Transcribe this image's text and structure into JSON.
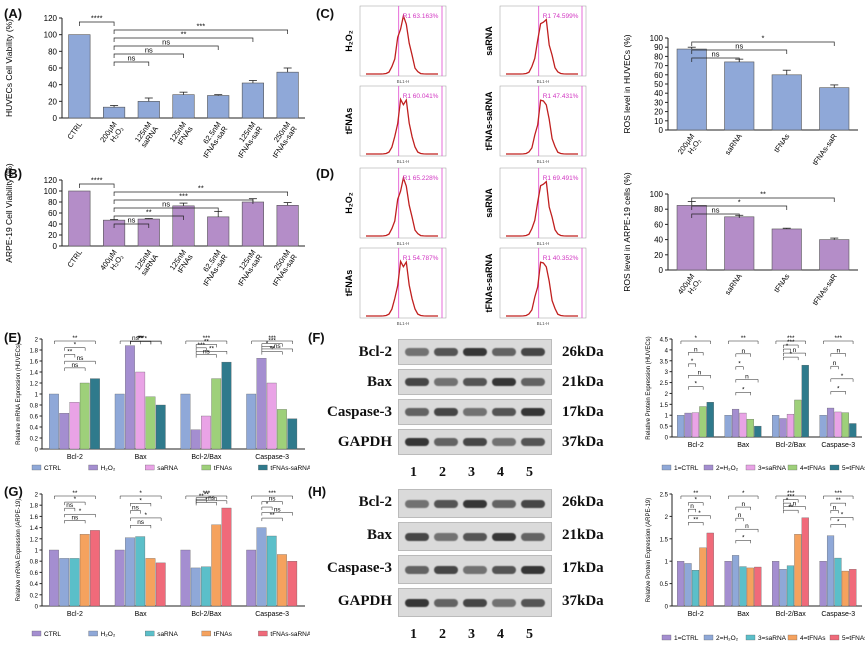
{
  "panels": {
    "A": "(A)",
    "B": "(B)",
    "C": "(C)",
    "D": "(D)",
    "E": "(E)",
    "F": "(F)",
    "G": "(G)",
    "H": "(H)"
  },
  "chart_data": [
    {
      "id": "A",
      "type": "bar",
      "ylabel": "HUVECs Cell Viability (%)",
      "ylim": [
        0,
        120
      ],
      "yticks": [
        0,
        20,
        40,
        60,
        80,
        100,
        120
      ],
      "categories": [
        "CTRL",
        "200μM H₂O₂",
        "125nM saRNA",
        "125nM tFNAs",
        "62.5nM tFNAs-saR",
        "125nM tFNAs-saR",
        "250nM tFNAs-saR"
      ],
      "values": [
        100,
        13,
        20,
        28,
        27,
        42,
        55
      ],
      "errors": [
        0,
        2,
        4,
        3,
        1,
        3,
        5
      ],
      "color": "#8fa8d8",
      "significance": [
        {
          "from": 0,
          "to": 1,
          "label": "****"
        },
        {
          "from": 1,
          "to": 6,
          "label": "***"
        },
        {
          "from": 1,
          "to": 5,
          "label": "**"
        },
        {
          "from": 1,
          "to": 4,
          "label": "ns"
        },
        {
          "from": 1,
          "to": 3,
          "label": "ns"
        },
        {
          "from": 1,
          "to": 2,
          "label": "ns"
        }
      ]
    },
    {
      "id": "B",
      "type": "bar",
      "ylabel": "ARPE-19 Cell Viability (%)",
      "ylim": [
        0,
        120
      ],
      "yticks": [
        0,
        20,
        40,
        60,
        80,
        100,
        120
      ],
      "categories": [
        "CTRL",
        "400μM H₂O₂",
        "125nM saRNA",
        "125nM tFNAs",
        "62.5nM tFNAs-saR",
        "125nM tFNAs-saR",
        "250nM tFNAs-saR"
      ],
      "values": [
        100,
        47,
        49,
        73,
        53,
        80,
        74
      ],
      "errors": [
        0,
        1,
        1,
        5,
        10,
        6,
        5
      ],
      "color": "#b48dc8",
      "significance": [
        {
          "from": 0,
          "to": 1,
          "label": "****"
        },
        {
          "from": 1,
          "to": 6,
          "label": "**"
        },
        {
          "from": 1,
          "to": 5,
          "label": "***"
        },
        {
          "from": 1,
          "to": 4,
          "label": "ns"
        },
        {
          "from": 1,
          "to": 3,
          "label": "**"
        },
        {
          "from": 1,
          "to": 2,
          "label": "ns"
        }
      ]
    },
    {
      "id": "C-bar",
      "type": "bar",
      "ylabel": "ROS level in HUVECs (%)",
      "ylim": [
        0,
        100
      ],
      "yticks": [
        0,
        10,
        20,
        30,
        40,
        50,
        60,
        70,
        80,
        90,
        100
      ],
      "categories": [
        "200μM H₂O₂",
        "saRNA",
        "tFNAs",
        "tFNAs-saR"
      ],
      "values": [
        88,
        74,
        60,
        46
      ],
      "errors": [
        2,
        3,
        5,
        3
      ],
      "color": "#8fa8d8",
      "significance": [
        {
          "from": 0,
          "to": 3,
          "label": "*"
        },
        {
          "from": 0,
          "to": 2,
          "label": "ns"
        },
        {
          "from": 0,
          "to": 1,
          "label": "ns"
        }
      ]
    },
    {
      "id": "D-bar",
      "type": "bar",
      "ylabel": "ROS level in ARPE-19 cells  (%)",
      "ylim": [
        0,
        100
      ],
      "yticks": [
        0,
        20,
        40,
        60,
        80,
        100
      ],
      "categories": [
        "400μM H₂O₂",
        "saRNA",
        "tFNAs",
        "tFNAs-saR"
      ],
      "values": [
        85,
        70,
        54,
        40
      ],
      "errors": [
        5,
        2,
        1,
        2
      ],
      "color": "#b48dc8",
      "significance": [
        {
          "from": 0,
          "to": 3,
          "label": "**"
        },
        {
          "from": 0,
          "to": 2,
          "label": "*"
        },
        {
          "from": 0,
          "to": 1,
          "label": "ns"
        }
      ]
    },
    {
      "id": "E",
      "type": "bar",
      "ylabel": "Relative mRNA Expression (HUVECs)",
      "ylim": [
        0,
        2.0
      ],
      "yticks": [
        0,
        0.2,
        0.4,
        0.6,
        0.8,
        1.0,
        1.2,
        1.4,
        1.6,
        1.8,
        2.0
      ],
      "categories": [
        "Bcl-2",
        "Bax",
        "Bcl-2/Bax",
        "Caspase-3"
      ],
      "series": [
        {
          "name": "CTRL",
          "color": "#8fa8d8",
          "values": [
            1.0,
            1.0,
            1.0,
            1.0
          ]
        },
        {
          "name": "H₂O₂",
          "color": "#a48ed0",
          "values": [
            0.65,
            1.88,
            0.35,
            1.65
          ]
        },
        {
          "name": "saRNA",
          "color": "#e9a3e6",
          "values": [
            0.85,
            1.4,
            0.6,
            1.2
          ]
        },
        {
          "name": "tFNAs",
          "color": "#9ed07a",
          "values": [
            1.2,
            0.95,
            1.28,
            0.72
          ]
        },
        {
          "name": "tFNAs-saRNA",
          "color": "#2f7a8c",
          "values": [
            1.28,
            0.8,
            1.58,
            0.55
          ]
        }
      ],
      "sig_labels": [
        [
          "**",
          "*",
          "**",
          "ns",
          "ns"
        ],
        [
          "***",
          "**",
          "ns",
          "*",
          "**"
        ],
        [
          "***",
          "**",
          "***",
          "**",
          "ns"
        ],
        [
          "***",
          "***",
          "*",
          "ns",
          "**"
        ]
      ]
    },
    {
      "id": "F-bar",
      "type": "bar",
      "ylabel": "Relative Protein Expression (HUVECs)",
      "ylim": [
        0,
        4.5
      ],
      "yticks": [
        0,
        0.5,
        1.0,
        1.5,
        2.0,
        2.5,
        3.0,
        3.5,
        4.0,
        4.5
      ],
      "categories": [
        "Bcl-2",
        "Bax",
        "Bcl-2/Bax",
        "Caspase-3"
      ],
      "series": [
        {
          "name": "1=CTRL",
          "color": "#8fa8d8",
          "values": [
            1.0,
            1.0,
            1.0,
            1.0
          ]
        },
        {
          "name": "2=H₂O₂",
          "color": "#a48ed0",
          "values": [
            1.1,
            1.28,
            0.85,
            1.33
          ]
        },
        {
          "name": "3=saRNA",
          "color": "#e9a3e6",
          "values": [
            1.12,
            1.1,
            1.05,
            1.15
          ]
        },
        {
          "name": "4=tFNAs",
          "color": "#9ed07a",
          "values": [
            1.4,
            0.82,
            1.7,
            1.12
          ]
        },
        {
          "name": "5=tFNAs-saRNA",
          "color": "#2f7a8c",
          "values": [
            1.6,
            0.5,
            3.3,
            0.62
          ]
        }
      ],
      "sig_labels": [
        [
          "*",
          "n",
          "*",
          "n",
          "*"
        ],
        [
          "**",
          "n",
          "*",
          "n",
          "*"
        ],
        [
          "***",
          "***",
          "*",
          "n",
          "*"
        ],
        [
          "***",
          "n",
          "n",
          "*",
          "*"
        ]
      ]
    },
    {
      "id": "G",
      "type": "bar",
      "ylabel": "Relative mRNA Expression (ARPE-19)",
      "ylim": [
        0,
        2.0
      ],
      "yticks": [
        0,
        0.2,
        0.4,
        0.6,
        0.8,
        1.0,
        1.2,
        1.4,
        1.6,
        1.8,
        2.0
      ],
      "categories": [
        "Bcl-2",
        "Bax",
        "Bcl-2/Bax",
        "Caspase-3"
      ],
      "series": [
        {
          "name": "CTRL",
          "color": "#a48ed0",
          "values": [
            1.0,
            1.0,
            1.0,
            1.0
          ]
        },
        {
          "name": "H₂O₂",
          "color": "#8fa8d8",
          "values": [
            0.85,
            1.22,
            0.68,
            1.4
          ]
        },
        {
          "name": "saRNA",
          "color": "#5bbfc9",
          "values": [
            0.85,
            1.24,
            0.7,
            1.25
          ]
        },
        {
          "name": "tFNAs",
          "color": "#f5a25e",
          "values": [
            1.28,
            0.85,
            1.45,
            0.92
          ]
        },
        {
          "name": "tFNAs-saRNA",
          "color": "#f06a7a",
          "values": [
            1.35,
            0.77,
            1.75,
            0.8
          ]
        }
      ],
      "sig_labels": [
        [
          "**",
          "*",
          "ns",
          "*",
          "ns"
        ],
        [
          "*",
          "*",
          "ns",
          "*",
          "ns"
        ],
        [
          "***",
          "**",
          "**",
          "ns",
          "*"
        ],
        [
          "***",
          "ns",
          "*",
          "ns",
          "**"
        ]
      ]
    },
    {
      "id": "H-bar",
      "type": "bar",
      "ylabel": "Relative Protein Expression (ARPE-19)",
      "ylim": [
        0,
        2.5
      ],
      "yticks": [
        0,
        0.5,
        1.0,
        1.5,
        2.0,
        2.5
      ],
      "categories": [
        "Bcl-2",
        "Bax",
        "Bcl-2/Bax",
        "Caspase-3"
      ],
      "series": [
        {
          "name": "1=CTRL",
          "color": "#a48ed0",
          "values": [
            1.0,
            1.0,
            1.0,
            1.0
          ]
        },
        {
          "name": "2=H₂O₂",
          "color": "#8fa8d8",
          "values": [
            0.95,
            1.13,
            0.82,
            1.57
          ]
        },
        {
          "name": "3=saRNA",
          "color": "#5bbfc9",
          "values": [
            0.8,
            0.88,
            0.9,
            1.07
          ]
        },
        {
          "name": "4=tFNAs",
          "color": "#f5a25e",
          "values": [
            1.3,
            0.85,
            1.6,
            0.78
          ]
        },
        {
          "name": "5=tFNAs-saRNA",
          "color": "#f06a7a",
          "values": [
            1.63,
            0.87,
            1.97,
            0.82
          ]
        }
      ],
      "sig_labels": [
        [
          "**",
          "*",
          "n",
          "*",
          "**"
        ],
        [
          "*",
          "n",
          "n",
          "n",
          "*"
        ],
        [
          "***",
          "***",
          "*",
          "n",
          "**"
        ],
        [
          "***",
          "**",
          "n",
          "*",
          "*"
        ]
      ]
    }
  ],
  "flow": {
    "C": {
      "rows": [
        "H₂O₂",
        "tFNAs"
      ],
      "rows_right": [
        "saRNA",
        "tFNAs-saRNA"
      ],
      "pct": [
        "63.163%",
        "74.599%",
        "60.041%",
        "47.431%"
      ]
    },
    "D": {
      "rows": [
        "H₂O₂",
        "tFNAs"
      ],
      "rows_right": [
        "saRNA",
        "tFNAs-saRNA"
      ],
      "pct": [
        "65.228%",
        "69.491%",
        "54.787%",
        "40.352%"
      ]
    },
    "xaxis": "BL1-H"
  },
  "blots": {
    "F": {
      "proteins": [
        "Bcl-2",
        "Bax",
        "Caspase-3",
        "GAPDH"
      ],
      "kda": [
        "26kDa",
        "21kDa",
        "17kDa",
        "37kDa"
      ],
      "lanes": [
        "1",
        "2",
        "3",
        "4",
        "5"
      ]
    },
    "H": {
      "proteins": [
        "Bcl-2",
        "Bax",
        "Caspase-3",
        "GAPDH"
      ],
      "kda": [
        "26kDa",
        "21kDa",
        "17kDa",
        "37kDa"
      ],
      "lanes": [
        "1",
        "2",
        "3",
        "4",
        "5"
      ]
    }
  }
}
